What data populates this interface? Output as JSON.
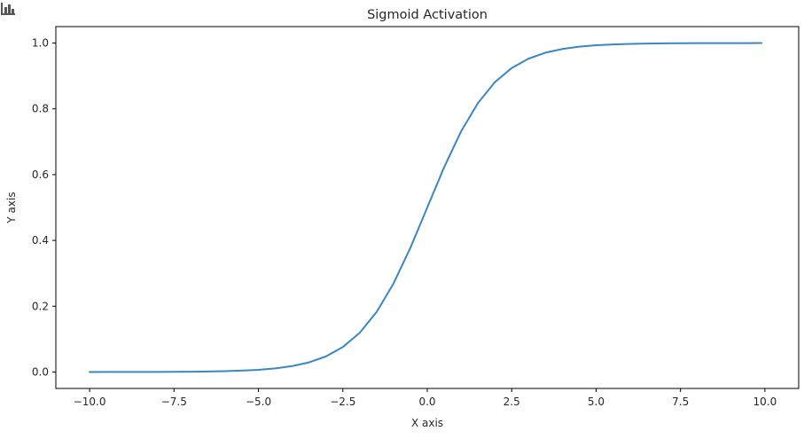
{
  "toolbar": {
    "icon": "bar-chart-icon"
  },
  "chart_data": {
    "type": "line",
    "title": "Sigmoid Activation",
    "xlabel": "X axis",
    "ylabel": "Y axis",
    "xlim": [
      -11.0,
      11.0
    ],
    "ylim": [
      -0.05,
      1.05
    ],
    "xticks": [
      -10.0,
      -7.5,
      -5.0,
      -2.5,
      0.0,
      2.5,
      5.0,
      7.5,
      10.0
    ],
    "xtick_labels": [
      "−10.0",
      "−7.5",
      "−5.0",
      "−2.5",
      "0.0",
      "2.5",
      "5.0",
      "7.5",
      "10.0"
    ],
    "yticks": [
      0.0,
      0.2,
      0.4,
      0.6,
      0.8,
      1.0
    ],
    "ytick_labels": [
      "0.0",
      "0.2",
      "0.4",
      "0.6",
      "0.8",
      "1.0"
    ],
    "grid": false,
    "legend": "none",
    "series": [
      {
        "color": "#3a87c2",
        "x": [
          -10.0,
          -9.5,
          -9.0,
          -8.5,
          -8.0,
          -7.5,
          -7.0,
          -6.5,
          -6.0,
          -5.5,
          -5.0,
          -4.5,
          -4.0,
          -3.5,
          -3.0,
          -2.5,
          -2.0,
          -1.5,
          -1.0,
          -0.5,
          0.0,
          0.5,
          1.0,
          1.5,
          2.0,
          2.5,
          3.0,
          3.5,
          4.0,
          4.5,
          5.0,
          5.5,
          6.0,
          6.5,
          7.0,
          7.5,
          8.0,
          8.5,
          9.0,
          9.5,
          9.9
        ],
        "y": [
          0.0,
          0.0001,
          0.0001,
          0.0002,
          0.0003,
          0.0006,
          0.0009,
          0.0015,
          0.0025,
          0.0041,
          0.0067,
          0.011,
          0.018,
          0.0293,
          0.0474,
          0.0759,
          0.1192,
          0.1824,
          0.2689,
          0.3775,
          0.5,
          0.6225,
          0.7311,
          0.8176,
          0.8808,
          0.9241,
          0.9526,
          0.9707,
          0.982,
          0.989,
          0.9933,
          0.9959,
          0.9975,
          0.9985,
          0.9991,
          0.9994,
          0.9997,
          0.9998,
          0.9999,
          0.9999,
          1.0
        ]
      }
    ]
  }
}
